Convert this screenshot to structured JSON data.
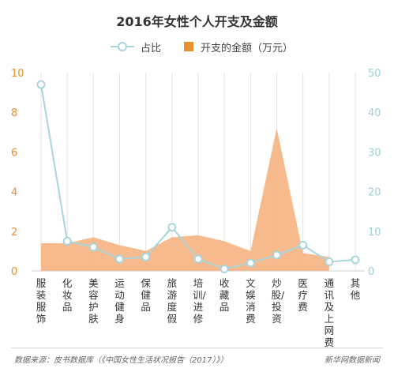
{
  "chart_data": {
    "type": "line+area",
    "title": "2016年女性个人开支及金额",
    "legend": [
      {
        "name": "占比",
        "mark": "line-circle",
        "color": "#a8d5dc"
      },
      {
        "name": "开支的金额（万元）",
        "mark": "square",
        "color": "#e8902c"
      }
    ],
    "categories": [
      "服装服饰",
      "化妆品",
      "美容护肤",
      "运动健身",
      "保健品",
      "旅游度假",
      "培训/进修",
      "收藏品",
      "文娱消费",
      "炒股/投资",
      "医疗费",
      "通讯及上网费",
      "其他"
    ],
    "series": [
      {
        "name": "开支的金额（万元）",
        "axis": "left",
        "type": "area",
        "color": "#f6b686",
        "values": [
          1.4,
          1.4,
          1.7,
          1.3,
          1.0,
          1.7,
          1.8,
          1.5,
          1.0,
          7.2,
          0.9,
          0.7,
          null
        ]
      },
      {
        "name": "占比",
        "axis": "right",
        "type": "line",
        "color": "#a8d5dc",
        "values": [
          47,
          7.5,
          6,
          3,
          3.5,
          11,
          3,
          0.5,
          2,
          4,
          6.5,
          2.3,
          2.8
        ]
      }
    ],
    "y_left": {
      "min": 0,
      "max": 10,
      "ticks": [
        0,
        2,
        4,
        6,
        8,
        10
      ],
      "tick_labels": [
        "0",
        "2",
        "4",
        "6",
        "8",
        "10"
      ],
      "color": "#e8902c"
    },
    "y_right": {
      "min": 0,
      "max": 50,
      "ticks": [
        0,
        10,
        20,
        30,
        40,
        50
      ],
      "tick_labels": [
        "0",
        "10",
        "20",
        "30",
        "40",
        "50"
      ],
      "color": "#9fcfd6"
    },
    "grid": "vertical"
  },
  "footer": {
    "source": "数据来源：皮书数据库（《中国女性生活状况报告（2017）》）",
    "brand": "新华网数据新闻"
  }
}
